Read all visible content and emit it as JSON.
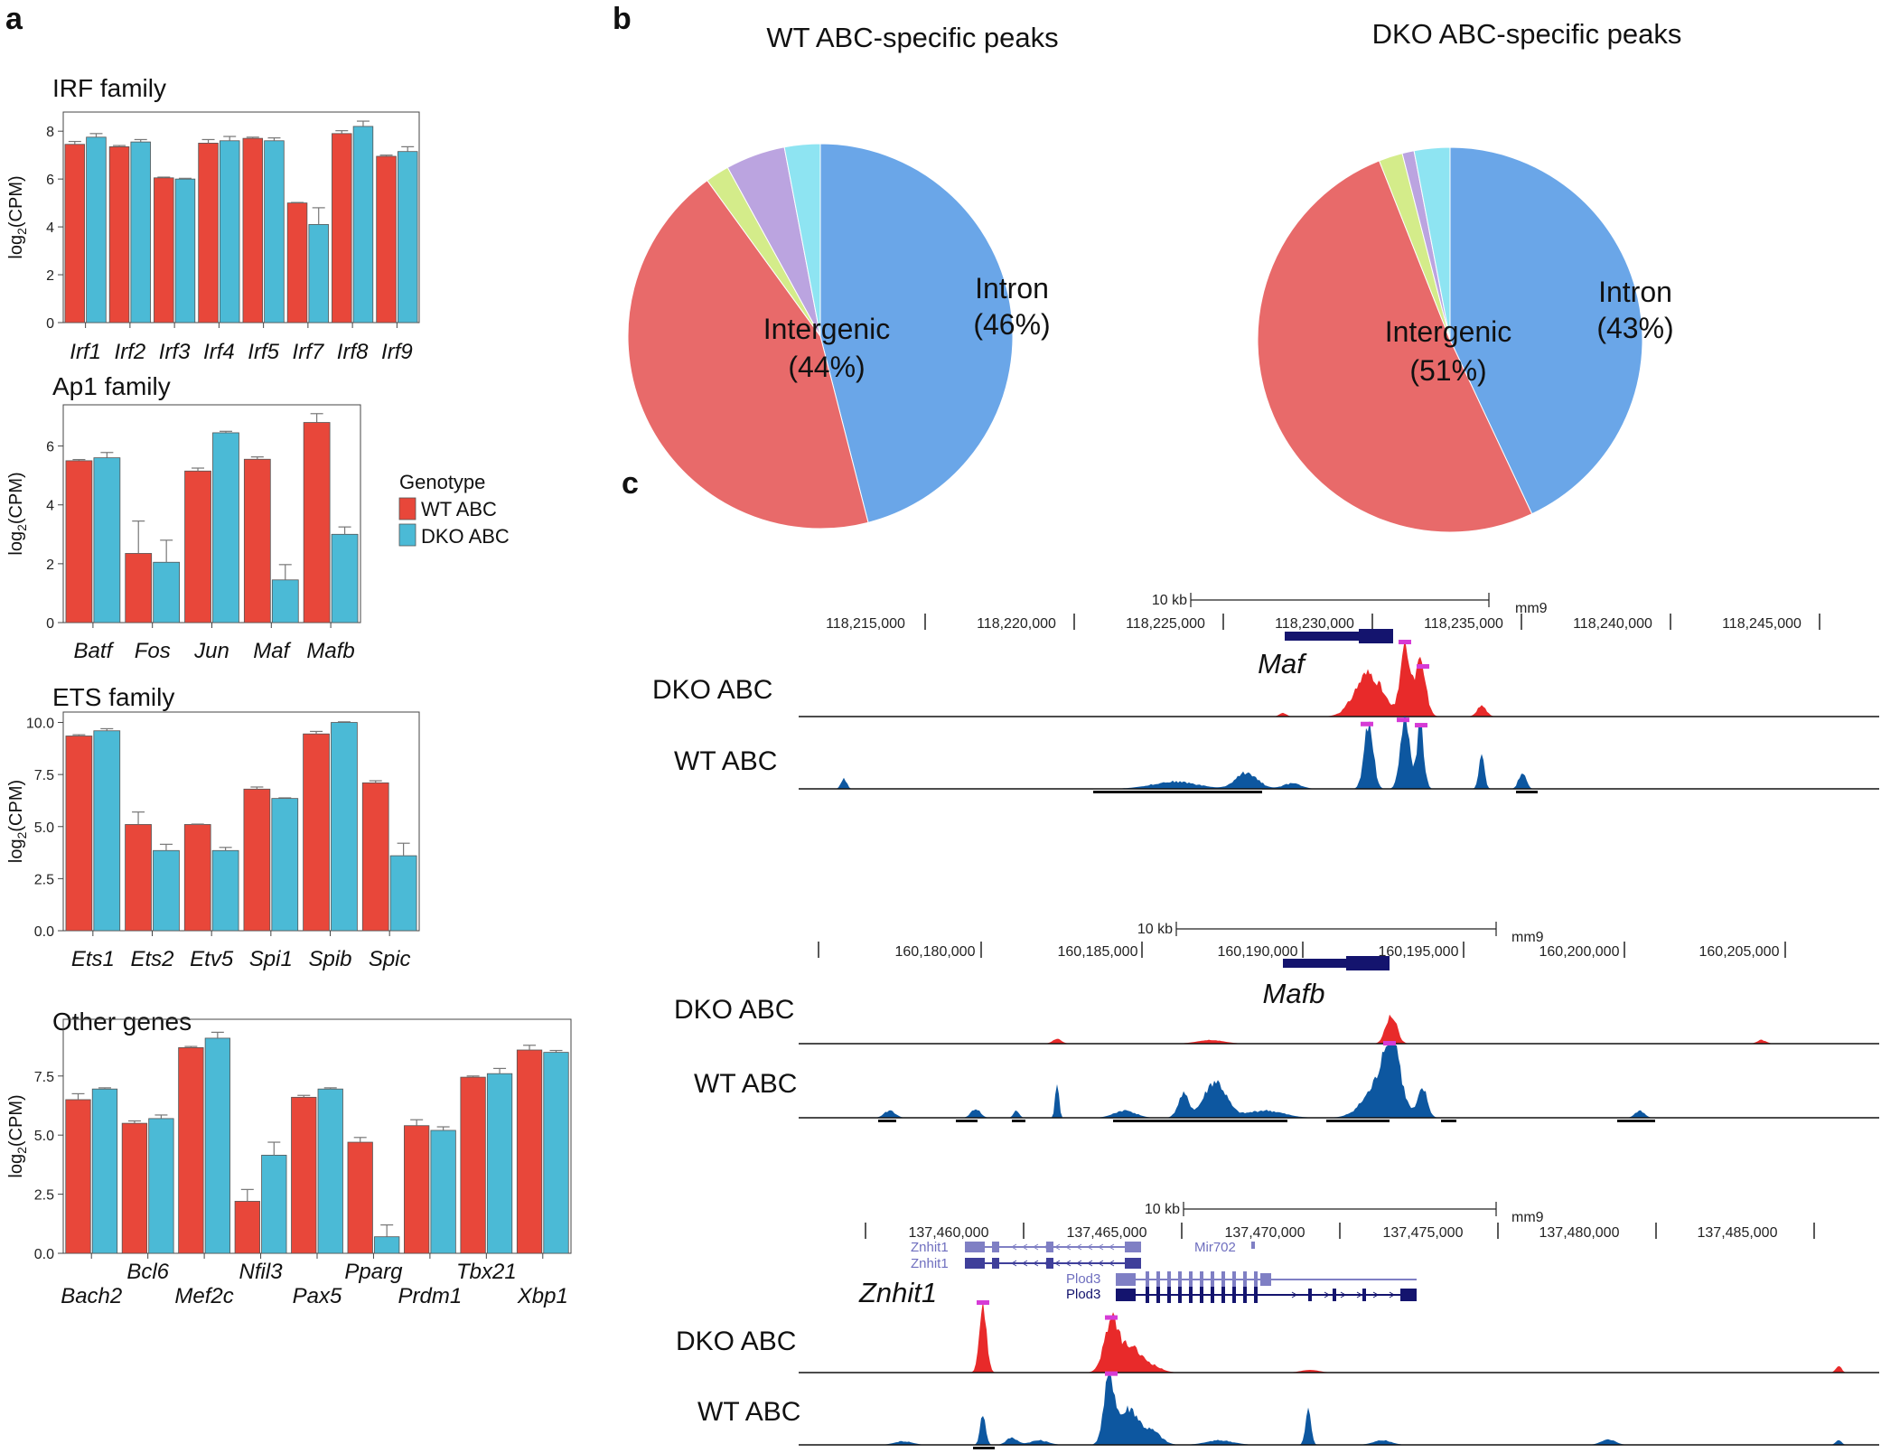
{
  "colors": {
    "wt": "#e8473a",
    "dko": "#4bbad6",
    "wt_track": "#0d57a0",
    "dko_track": "#e82a2a",
    "gene": "#14146e",
    "gene_light": "#7f7fc4",
    "peak_mark": "#d63bd6"
  },
  "panels": {
    "a": "a",
    "b": "b",
    "c": "c"
  },
  "legend": {
    "title": "Genotype",
    "wt": "WT ABC",
    "dko": "DKO ABC"
  },
  "ylabel": "log2(CPM)",
  "chart_data": [
    {
      "type": "bar",
      "id": "irf",
      "title": "IRF family",
      "categories": [
        "Irf1",
        "Irf2",
        "Irf3",
        "Irf4",
        "Irf5",
        "Irf7",
        "Irf8",
        "Irf9"
      ],
      "series": [
        {
          "name": "WT ABC",
          "values": [
            7.45,
            7.35,
            6.05,
            7.5,
            7.7,
            5.0,
            7.9,
            6.95
          ],
          "err": [
            0.12,
            0.05,
            0.03,
            0.15,
            0.05,
            0.02,
            0.12,
            0.05
          ]
        },
        {
          "name": "DKO ABC",
          "values": [
            7.75,
            7.55,
            6.0,
            7.6,
            7.6,
            4.1,
            8.2,
            7.15
          ],
          "err": [
            0.15,
            0.1,
            0.03,
            0.18,
            0.12,
            0.7,
            0.22,
            0.2
          ]
        }
      ],
      "ylim": [
        0,
        8.8
      ],
      "yticks": [
        0,
        2,
        4,
        6,
        8
      ],
      "ylabels": [
        "0",
        "2",
        "4",
        "6",
        "8"
      ]
    },
    {
      "type": "bar",
      "id": "ap1",
      "title": "Ap1 family",
      "categories": [
        "Batf",
        "Fos",
        "Jun",
        "Maf",
        "Mafb"
      ],
      "series": [
        {
          "name": "WT ABC",
          "values": [
            5.5,
            2.35,
            5.15,
            5.55,
            6.8
          ],
          "err": [
            0.04,
            1.1,
            0.1,
            0.08,
            0.3
          ]
        },
        {
          "name": "DKO ABC",
          "values": [
            5.6,
            2.05,
            6.45,
            1.45,
            3.0
          ],
          "err": [
            0.18,
            0.75,
            0.05,
            0.52,
            0.25
          ]
        }
      ],
      "ylim": [
        0,
        7.4
      ],
      "yticks": [
        0,
        2,
        4,
        6
      ],
      "ylabels": [
        "0",
        "2",
        "4",
        "6"
      ]
    },
    {
      "type": "bar",
      "id": "ets",
      "title": "ETS family",
      "categories": [
        "Ets1",
        "Ets2",
        "Etv5",
        "Spi1",
        "Spib",
        "Spic"
      ],
      "series": [
        {
          "name": "WT ABC",
          "values": [
            9.35,
            5.1,
            5.1,
            6.8,
            9.45,
            7.1
          ],
          "err": [
            0.06,
            0.6,
            0.02,
            0.1,
            0.12,
            0.1
          ]
        },
        {
          "name": "DKO ABC",
          "values": [
            9.6,
            3.85,
            3.85,
            6.35,
            10.0,
            3.6
          ],
          "err": [
            0.1,
            0.3,
            0.15,
            0.03,
            0.03,
            0.6
          ]
        }
      ],
      "ylim": [
        0,
        10.5
      ],
      "yticks": [
        0,
        2.5,
        5,
        7.5,
        10
      ],
      "ylabels": [
        "0.0",
        "2.5",
        "5.0",
        "7.5",
        "10.0"
      ]
    },
    {
      "type": "bar",
      "id": "other",
      "title": "Other genes",
      "categories": [
        "Bach2",
        "Bcl6",
        "Mef2c",
        "Nfil3",
        "Pax5",
        "Pparg",
        "Prdm1",
        "Tbx21",
        "Xbp1"
      ],
      "series": [
        {
          "name": "WT ABC",
          "values": [
            6.5,
            5.5,
            8.7,
            2.2,
            6.6,
            4.7,
            5.4,
            7.45,
            8.6
          ],
          "err": [
            0.25,
            0.1,
            0.05,
            0.5,
            0.08,
            0.2,
            0.25,
            0.05,
            0.2
          ]
        },
        {
          "name": "DKO ABC",
          "values": [
            6.95,
            5.7,
            9.1,
            4.15,
            6.95,
            0.7,
            5.2,
            7.6,
            8.5
          ],
          "err": [
            0.05,
            0.15,
            0.25,
            0.55,
            0.05,
            0.5,
            0.15,
            0.22,
            0.08
          ]
        }
      ],
      "ylim": [
        0,
        9.9
      ],
      "yticks": [
        0,
        2.5,
        5,
        7.5
      ],
      "ylabels": [
        "0.0",
        "2.5",
        "5.0",
        "7.5"
      ]
    },
    {
      "type": "pie",
      "id": "wt-pie",
      "title": "WT ABC-specific peaks",
      "slices": [
        {
          "name": "Intron",
          "value": 46,
          "color": "#6aa6e8"
        },
        {
          "name": "Intergenic",
          "value": 44,
          "color": "#e86a6a"
        },
        {
          "name": "Other 1",
          "value": 2,
          "color": "#d4ec8a"
        },
        {
          "name": "Other 2",
          "value": 5,
          "color": "#bba4e0"
        },
        {
          "name": "Other 3",
          "value": 3,
          "color": "#8ee4f2"
        }
      ],
      "labels": [
        {
          "slice": "Intron",
          "name": "Intron",
          "pct": "(46%)"
        },
        {
          "slice": "Intergenic",
          "name": "Intergenic",
          "pct": "(44%)"
        }
      ]
    },
    {
      "type": "pie",
      "id": "dko-pie",
      "title": "DKO ABC-specific peaks",
      "slices": [
        {
          "name": "Intron",
          "value": 43,
          "color": "#6aa6e8"
        },
        {
          "name": "Intergenic",
          "value": 51,
          "color": "#e86a6a"
        },
        {
          "name": "Other 1",
          "value": 2,
          "color": "#d4ec8a"
        },
        {
          "name": "Other 2",
          "value": 1,
          "color": "#bba4e0"
        },
        {
          "name": "Other 3",
          "value": 3,
          "color": "#8ee4f2"
        }
      ],
      "labels": [
        {
          "slice": "Intron",
          "name": "Intron",
          "pct": "(43%)"
        },
        {
          "slice": "Intergenic",
          "name": "Intergenic",
          "pct": "(51%)"
        }
      ]
    }
  ],
  "genome_tracks": [
    {
      "id": "maf",
      "gene": "Maf",
      "scale": "10 kb",
      "assembly": "mm9",
      "coords": [
        "118,215,000",
        "118,220,000",
        "118,225,000",
        "118,230,000",
        "118,235,000",
        "118,240,000",
        "118,245,000"
      ],
      "tracks": [
        "DKO ABC",
        "WT ABC"
      ],
      "isoforms": []
    },
    {
      "id": "mafb",
      "gene": "Mafb",
      "scale": "10 kb",
      "assembly": "mm9",
      "coords": [
        "160,180,000",
        "160,185,000",
        "160,190,000",
        "160,195,000",
        "160,200,000",
        "160,205,000"
      ],
      "tracks": [
        "DKO ABC",
        "WT ABC"
      ],
      "isoforms": []
    },
    {
      "id": "znhit1",
      "gene": "Znhit1",
      "scale": "10 kb",
      "assembly": "mm9",
      "coords": [
        "137,460,000",
        "137,465,000",
        "137,470,000",
        "137,475,000",
        "137,480,000",
        "137,485,000"
      ],
      "tracks": [
        "DKO ABC",
        "WT ABC"
      ],
      "isoforms": [
        "Znhit1",
        "Znhit1",
        "Mir702",
        "Plod3",
        "Plod3"
      ]
    }
  ]
}
